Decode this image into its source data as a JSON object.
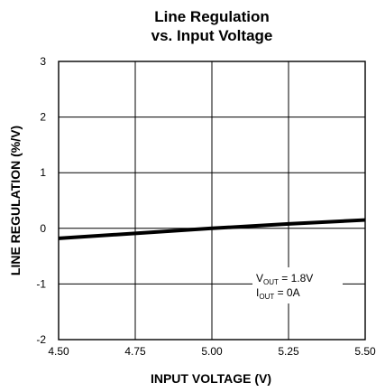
{
  "chart_data": {
    "type": "line",
    "title": "Line Regulation",
    "subtitle": "vs. Input Voltage",
    "xlabel": "INPUT VOLTAGE (V)",
    "ylabel": "LINE REGULATION (%/V)",
    "xlim": [
      4.5,
      5.5
    ],
    "ylim": [
      -2,
      3
    ],
    "xticks": [
      "4.50",
      "4.75",
      "5.00",
      "5.25",
      "5.50"
    ],
    "yticks": [
      "3",
      "2",
      "1",
      "0",
      "-1",
      "-2"
    ],
    "grid": true,
    "series": [
      {
        "x": [
          4.5,
          4.75,
          5.0,
          5.25,
          5.5
        ],
        "y": [
          -0.18,
          -0.09,
          0.0,
          0.08,
          0.15
        ]
      }
    ],
    "annotation": {
      "line1_main": "V",
      "line1_sub": "OUT",
      "line1_rest": " = 1.8V",
      "line2_main": "I",
      "line2_sub": "OUT",
      "line2_rest": " = 0A"
    },
    "colors": {
      "line": "#000000",
      "grid": "#000000",
      "background": "#ffffff"
    }
  }
}
